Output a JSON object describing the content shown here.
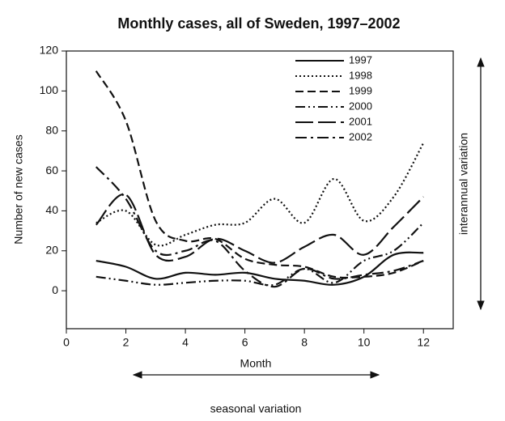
{
  "chart_data": {
    "type": "line",
    "title": "Monthly cases, all of Sweden, 1997–2002",
    "x_label": "Month",
    "y_label": "Number of new cases",
    "annotations": [
      "interannual variation",
      "seasonal variation"
    ],
    "x": [
      1,
      2,
      3,
      4,
      5,
      6,
      7,
      8,
      9,
      10,
      11,
      12
    ],
    "series": [
      {
        "name": "1997",
        "color": "#111111",
        "dash": "none",
        "values": [
          15,
          12,
          6,
          9,
          8,
          9,
          6,
          5,
          3,
          7,
          18,
          19
        ]
      },
      {
        "name": "1998",
        "color": "#111111",
        "dash": "2,3",
        "values": [
          34,
          40,
          23,
          28,
          33,
          34,
          46,
          34,
          56,
          35,
          47,
          74
        ]
      },
      {
        "name": "1999",
        "color": "#111111",
        "dash": "10,5",
        "values": [
          110,
          85,
          35,
          25,
          26,
          16,
          13,
          12,
          7,
          7,
          9,
          15
        ]
      },
      {
        "name": "2000",
        "color": "#111111",
        "dash": "12,4,2,4,2,4",
        "values": [
          7,
          5,
          3,
          4,
          5,
          5,
          3,
          11,
          4,
          15,
          20,
          34
        ]
      },
      {
        "name": "2001",
        "color": "#111111",
        "dash": "22,6",
        "values": [
          33,
          48,
          18,
          17,
          26,
          20,
          14,
          22,
          28,
          18,
          32,
          47
        ]
      },
      {
        "name": "2002",
        "color": "#111111",
        "dash": "14,5,3,5",
        "values": [
          62,
          46,
          20,
          20,
          25,
          10,
          2,
          11,
          6,
          8,
          10,
          15
        ]
      }
    ],
    "xlim": [
      0,
      13
    ],
    "ylim": [
      -19,
      120
    ],
    "xticks": [
      0,
      2,
      4,
      6,
      8,
      10,
      12
    ],
    "yticks": [
      0,
      20,
      40,
      60,
      80,
      100,
      120
    ],
    "legend": "upper-right",
    "grid": false
  }
}
